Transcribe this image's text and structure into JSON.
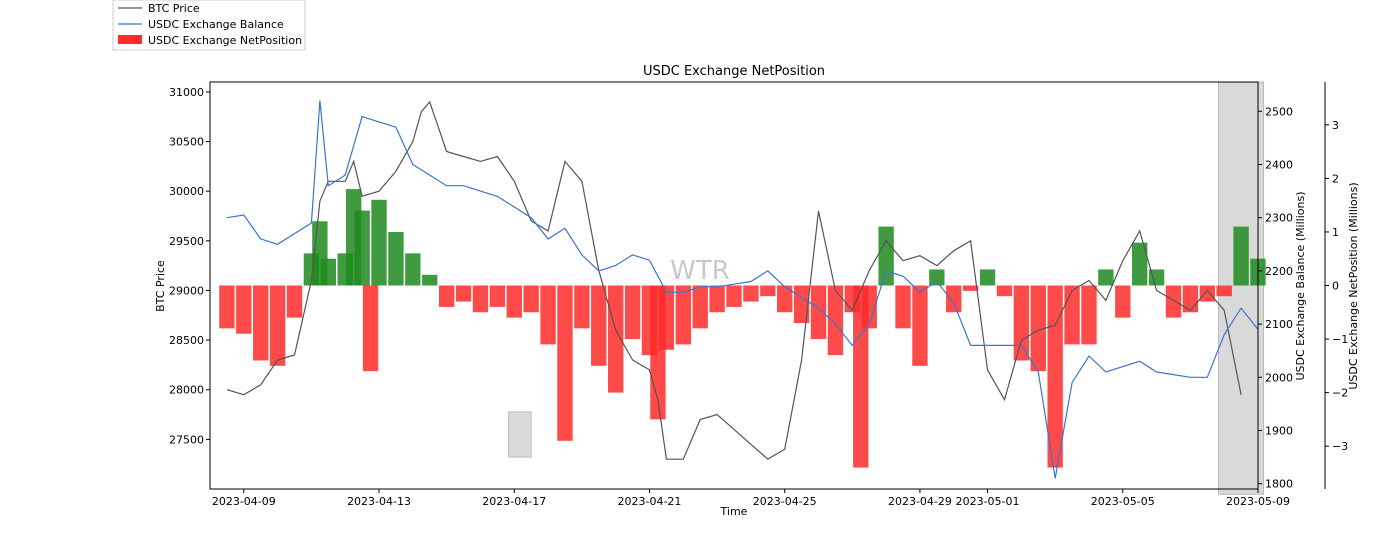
{
  "chart_data": {
    "type": "bar",
    "title": "USDC Exchange NetPosition",
    "xlabel": "Time",
    "watermark": "WTR",
    "colors": {
      "price": "#555555",
      "balance": "#3a74d1",
      "positive": "#1f8a1f",
      "negative": "#ff2a2a",
      "shade": "#d9d9d9"
    },
    "x_ticks": [
      "2023-04-09",
      "2023-04-13",
      "2023-04-17",
      "2023-04-21",
      "2023-04-25",
      "2023-04-29",
      "2023-05-01",
      "2023-05-05",
      "2023-05-09"
    ],
    "x_range": [
      "2023-04-08",
      "2023-05-09"
    ],
    "left_axis": {
      "label": "BTC Price",
      "ticks": [
        27500,
        28000,
        28500,
        29000,
        29500,
        30000,
        30500,
        31000
      ],
      "ylim": [
        27000,
        31100
      ]
    },
    "right_axis_1": {
      "label": "USDC Exchange Balance (Millions)",
      "ticks": [
        1800,
        1900,
        2000,
        2100,
        2200,
        2300,
        2400,
        2500
      ],
      "ylim": [
        1790,
        2555
      ]
    },
    "right_axis_2": {
      "label": "USDC Exchange NetPosition (Millions)",
      "ticks": [
        -3,
        -2,
        -1,
        0,
        1,
        2,
        3
      ],
      "ylim": [
        -3.8,
        3.8
      ]
    },
    "legend": {
      "position": "upper-left",
      "entries": [
        "BTC Price",
        "USDC Exchange Balance",
        "USDC Exchange NetPosition"
      ]
    },
    "shaded_regions": [
      {
        "x": [
          "2023-04-16 20:00",
          "2023-04-17 12:00"
        ],
        "y": [
          1850,
          1935
        ]
      },
      {
        "x": [
          "2023-05-07 20:00",
          "2023-05-09 04:00"
        ],
        "y": [
          1780,
          2555
        ]
      }
    ],
    "series": [
      {
        "name": "BTC Price",
        "axis": "left",
        "points": [
          [
            "2023-04-08 12:00",
            28000
          ],
          [
            "2023-04-09 00:00",
            27950
          ],
          [
            "2023-04-09 12:00",
            28050
          ],
          [
            "2023-04-10 00:00",
            28300
          ],
          [
            "2023-04-10 12:00",
            28350
          ],
          [
            "2023-04-11 00:00",
            29100
          ],
          [
            "2023-04-11 06:00",
            29900
          ],
          [
            "2023-04-11 12:00",
            30100
          ],
          [
            "2023-04-12 00:00",
            30100
          ],
          [
            "2023-04-12 06:00",
            30300
          ],
          [
            "2023-04-12 12:00",
            29950
          ],
          [
            "2023-04-13 00:00",
            30000
          ],
          [
            "2023-04-13 12:00",
            30200
          ],
          [
            "2023-04-14 00:00",
            30500
          ],
          [
            "2023-04-14 06:00",
            30800
          ],
          [
            "2023-04-14 12:00",
            30900
          ],
          [
            "2023-04-15 00:00",
            30400
          ],
          [
            "2023-04-15 12:00",
            30350
          ],
          [
            "2023-04-16 00:00",
            30300
          ],
          [
            "2023-04-16 12:00",
            30350
          ],
          [
            "2023-04-17 00:00",
            30100
          ],
          [
            "2023-04-17 12:00",
            29700
          ],
          [
            "2023-04-18 00:00",
            29600
          ],
          [
            "2023-04-18 12:00",
            30300
          ],
          [
            "2023-04-19 00:00",
            30100
          ],
          [
            "2023-04-19 12:00",
            29200
          ],
          [
            "2023-04-20 00:00",
            28600
          ],
          [
            "2023-04-20 12:00",
            28300
          ],
          [
            "2023-04-21 00:00",
            28200
          ],
          [
            "2023-04-21 06:00",
            27900
          ],
          [
            "2023-04-21 12:00",
            27300
          ],
          [
            "2023-04-22 00:00",
            27300
          ],
          [
            "2023-04-22 12:00",
            27700
          ],
          [
            "2023-04-23 00:00",
            27750
          ],
          [
            "2023-04-23 12:00",
            27600
          ],
          [
            "2023-04-24 00:00",
            27450
          ],
          [
            "2023-04-24 12:00",
            27300
          ],
          [
            "2023-04-25 00:00",
            27400
          ],
          [
            "2023-04-25 12:00",
            28300
          ],
          [
            "2023-04-26 00:00",
            29800
          ],
          [
            "2023-04-26 12:00",
            29000
          ],
          [
            "2023-04-27 00:00",
            28800
          ],
          [
            "2023-04-27 12:00",
            29200
          ],
          [
            "2023-04-28 00:00",
            29500
          ],
          [
            "2023-04-28 12:00",
            29300
          ],
          [
            "2023-04-29 00:00",
            29350
          ],
          [
            "2023-04-29 12:00",
            29250
          ],
          [
            "2023-04-30 00:00",
            29400
          ],
          [
            "2023-04-30 12:00",
            29500
          ],
          [
            "2023-05-01 00:00",
            28200
          ],
          [
            "2023-05-01 12:00",
            27900
          ],
          [
            "2023-05-02 00:00",
            28500
          ],
          [
            "2023-05-02 12:00",
            28600
          ],
          [
            "2023-05-03 00:00",
            28650
          ],
          [
            "2023-05-03 12:00",
            29000
          ],
          [
            "2023-05-04 00:00",
            29100
          ],
          [
            "2023-05-04 12:00",
            28900
          ],
          [
            "2023-05-05 00:00",
            29300
          ],
          [
            "2023-05-05 12:00",
            29600
          ],
          [
            "2023-05-06 00:00",
            29000
          ],
          [
            "2023-05-06 12:00",
            28900
          ],
          [
            "2023-05-07 00:00",
            28800
          ],
          [
            "2023-05-07 12:00",
            29000
          ],
          [
            "2023-05-08 00:00",
            28800
          ],
          [
            "2023-05-08 12:00",
            27950
          ]
        ]
      },
      {
        "name": "USDC Exchange Balance",
        "axis": "right_1",
        "points": [
          [
            "2023-04-08 12:00",
            2300
          ],
          [
            "2023-04-09 00:00",
            2305
          ],
          [
            "2023-04-09 12:00",
            2260
          ],
          [
            "2023-04-10 00:00",
            2250
          ],
          [
            "2023-04-10 12:00",
            2270
          ],
          [
            "2023-04-11 00:00",
            2290
          ],
          [
            "2023-04-11 06:00",
            2520
          ],
          [
            "2023-04-11 12:00",
            2360
          ],
          [
            "2023-04-12 00:00",
            2380
          ],
          [
            "2023-04-12 12:00",
            2490
          ],
          [
            "2023-04-13 00:00",
            2480
          ],
          [
            "2023-04-13 12:00",
            2470
          ],
          [
            "2023-04-14 00:00",
            2400
          ],
          [
            "2023-04-14 12:00",
            2380
          ],
          [
            "2023-04-15 00:00",
            2360
          ],
          [
            "2023-04-15 12:00",
            2360
          ],
          [
            "2023-04-16 00:00",
            2350
          ],
          [
            "2023-04-16 12:00",
            2340
          ],
          [
            "2023-04-17 00:00",
            2320
          ],
          [
            "2023-04-17 12:00",
            2300
          ],
          [
            "2023-04-18 00:00",
            2260
          ],
          [
            "2023-04-18 12:00",
            2280
          ],
          [
            "2023-04-19 00:00",
            2230
          ],
          [
            "2023-04-19 12:00",
            2200
          ],
          [
            "2023-04-20 00:00",
            2210
          ],
          [
            "2023-04-20 12:00",
            2230
          ],
          [
            "2023-04-21 00:00",
            2220
          ],
          [
            "2023-04-21 12:00",
            2160
          ],
          [
            "2023-04-22 00:00",
            2160
          ],
          [
            "2023-04-22 12:00",
            2170
          ],
          [
            "2023-04-23 00:00",
            2170
          ],
          [
            "2023-04-23 12:00",
            2175
          ],
          [
            "2023-04-24 00:00",
            2180
          ],
          [
            "2023-04-24 12:00",
            2200
          ],
          [
            "2023-04-25 00:00",
            2170
          ],
          [
            "2023-04-25 12:00",
            2150
          ],
          [
            "2023-04-26 00:00",
            2130
          ],
          [
            "2023-04-26 12:00",
            2100
          ],
          [
            "2023-04-27 00:00",
            2060
          ],
          [
            "2023-04-27 12:00",
            2100
          ],
          [
            "2023-04-28 00:00",
            2200
          ],
          [
            "2023-04-28 12:00",
            2190
          ],
          [
            "2023-04-29 00:00",
            2160
          ],
          [
            "2023-04-29 12:00",
            2180
          ],
          [
            "2023-04-30 00:00",
            2140
          ],
          [
            "2023-04-30 12:00",
            2060
          ],
          [
            "2023-05-01 00:00",
            2060
          ],
          [
            "2023-05-01 12:00",
            2060
          ],
          [
            "2023-05-02 00:00",
            2060
          ],
          [
            "2023-05-02 12:00",
            2010
          ],
          [
            "2023-05-03 00:00",
            1810
          ],
          [
            "2023-05-03 12:00",
            1990
          ],
          [
            "2023-05-04 00:00",
            2040
          ],
          [
            "2023-05-04 12:00",
            2010
          ],
          [
            "2023-05-05 00:00",
            2020
          ],
          [
            "2023-05-05 12:00",
            2030
          ],
          [
            "2023-05-06 00:00",
            2010
          ],
          [
            "2023-05-06 12:00",
            2005
          ],
          [
            "2023-05-07 00:00",
            2000
          ],
          [
            "2023-05-07 12:00",
            2000
          ],
          [
            "2023-05-08 00:00",
            2080
          ],
          [
            "2023-05-08 12:00",
            2130
          ],
          [
            "2023-05-09 00:00",
            2090
          ]
        ]
      },
      {
        "name": "USDC Exchange NetPosition",
        "axis": "right_2",
        "bars": [
          [
            "2023-04-08 12:00",
            -0.8
          ],
          [
            "2023-04-09 00:00",
            -0.9
          ],
          [
            "2023-04-09 12:00",
            -1.4
          ],
          [
            "2023-04-10 00:00",
            -1.5
          ],
          [
            "2023-04-10 12:00",
            -0.6
          ],
          [
            "2023-04-11 00:00",
            0.6
          ],
          [
            "2023-04-11 06:00",
            1.2
          ],
          [
            "2023-04-11 12:00",
            0.5
          ],
          [
            "2023-04-12 00:00",
            0.6
          ],
          [
            "2023-04-12 06:00",
            1.8
          ],
          [
            "2023-04-12 12:00",
            1.4
          ],
          [
            "2023-04-12 18:00",
            -1.6
          ],
          [
            "2023-04-13 00:00",
            1.6
          ],
          [
            "2023-04-13 12:00",
            1.0
          ],
          [
            "2023-04-14 00:00",
            0.6
          ],
          [
            "2023-04-14 12:00",
            0.2
          ],
          [
            "2023-04-15 00:00",
            -0.4
          ],
          [
            "2023-04-15 12:00",
            -0.3
          ],
          [
            "2023-04-16 00:00",
            -0.5
          ],
          [
            "2023-04-16 12:00",
            -0.4
          ],
          [
            "2023-04-17 00:00",
            -0.6
          ],
          [
            "2023-04-17 12:00",
            -0.5
          ],
          [
            "2023-04-18 00:00",
            -1.1
          ],
          [
            "2023-04-18 12:00",
            -2.9
          ],
          [
            "2023-04-19 00:00",
            -0.8
          ],
          [
            "2023-04-19 12:00",
            -1.5
          ],
          [
            "2023-04-20 00:00",
            -2.0
          ],
          [
            "2023-04-20 12:00",
            -1.0
          ],
          [
            "2023-04-21 00:00",
            -1.3
          ],
          [
            "2023-04-21 06:00",
            -2.5
          ],
          [
            "2023-04-21 12:00",
            -1.2
          ],
          [
            "2023-04-22 00:00",
            -1.1
          ],
          [
            "2023-04-22 12:00",
            -0.8
          ],
          [
            "2023-04-23 00:00",
            -0.5
          ],
          [
            "2023-04-23 12:00",
            -0.4
          ],
          [
            "2023-04-24 00:00",
            -0.3
          ],
          [
            "2023-04-24 12:00",
            -0.2
          ],
          [
            "2023-04-25 00:00",
            -0.5
          ],
          [
            "2023-04-25 12:00",
            -0.7
          ],
          [
            "2023-04-26 00:00",
            -1.0
          ],
          [
            "2023-04-26 12:00",
            -1.3
          ],
          [
            "2023-04-27 00:00",
            -0.5
          ],
          [
            "2023-04-27 06:00",
            -3.4
          ],
          [
            "2023-04-27 12:00",
            -0.8
          ],
          [
            "2023-04-28 00:00",
            1.1
          ],
          [
            "2023-04-28 12:00",
            -0.8
          ],
          [
            "2023-04-29 00:00",
            -1.5
          ],
          [
            "2023-04-29 12:00",
            0.3
          ],
          [
            "2023-04-30 00:00",
            -0.5
          ],
          [
            "2023-04-30 12:00",
            -0.1
          ],
          [
            "2023-05-01 00:00",
            0.3
          ],
          [
            "2023-05-01 12:00",
            -0.2
          ],
          [
            "2023-05-02 00:00",
            -1.4
          ],
          [
            "2023-05-02 12:00",
            -1.6
          ],
          [
            "2023-05-03 00:00",
            -3.4
          ],
          [
            "2023-05-03 12:00",
            -1.1
          ],
          [
            "2023-05-04 00:00",
            -1.1
          ],
          [
            "2023-05-04 12:00",
            0.3
          ],
          [
            "2023-05-05 00:00",
            -0.6
          ],
          [
            "2023-05-05 12:00",
            0.8
          ],
          [
            "2023-05-06 00:00",
            0.3
          ],
          [
            "2023-05-06 12:00",
            -0.6
          ],
          [
            "2023-05-07 00:00",
            -0.5
          ],
          [
            "2023-05-07 12:00",
            -0.3
          ],
          [
            "2023-05-08 00:00",
            -0.2
          ],
          [
            "2023-05-08 12:00",
            1.1
          ],
          [
            "2023-05-09 00:00",
            0.5
          ]
        ]
      }
    ]
  }
}
